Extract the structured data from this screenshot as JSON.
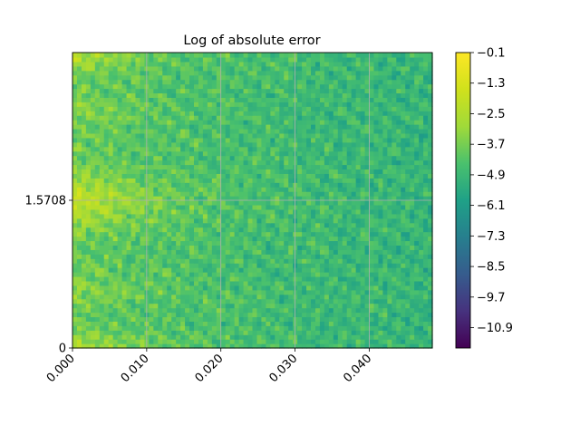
{
  "chart_data": {
    "type": "heatmap",
    "title": "Log of absolute error",
    "xlabel": "",
    "ylabel": "",
    "xlim": [
      0,
      0.0485
    ],
    "ylim": [
      0,
      3.1416
    ],
    "x_ticks": [
      0.0,
      0.01,
      0.02,
      0.03,
      0.04
    ],
    "x_tick_labels": [
      "0.000",
      "0.010",
      "0.020",
      "0.030",
      "0.040"
    ],
    "y_ticks": [
      0,
      1.5708
    ],
    "y_tick_labels": [
      "0",
      "1.5708"
    ],
    "grid": true,
    "colorbar": {
      "colormap": "viridis",
      "range": [
        -11.7,
        -0.1
      ],
      "ticks": [
        -0.1,
        -1.3,
        -2.5,
        -3.7,
        -4.9,
        -6.1,
        -7.3,
        -8.5,
        -9.7,
        -10.9
      ],
      "tick_labels": [
        "−0.1",
        "−1.3",
        "−2.5",
        "−3.7",
        "−4.9",
        "−6.1",
        "−7.3",
        "−8.5",
        "−9.7",
        "−10.9"
      ]
    },
    "field_description": "Noisy field mostly between −6 and −2; brighter (≈ −2) band near x≈0 at y≈1.57, y≈0 and y≈3.14, slightly darker toward larger x"
  }
}
